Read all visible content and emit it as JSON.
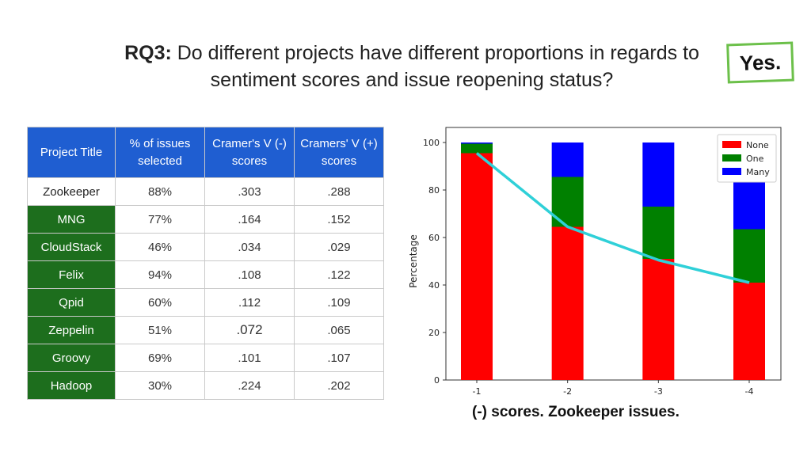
{
  "slide": {
    "title_bold": "RQ3:",
    "title_rest": " Do different projects have different proportions in regards to sentiment scores and issue reopening status?",
    "verdict": "Yes.",
    "caption": "(-) scores. Zookeeper issues."
  },
  "table": {
    "headers": [
      "Project Title",
      "% of issues selected",
      "Cramer's V (-) scores",
      "Cramers' V (+) scores"
    ],
    "rows": [
      [
        "Zookeeper",
        "88%",
        ".303",
        ".288"
      ],
      [
        "MNG",
        "77%",
        ".164",
        ".152"
      ],
      [
        "CloudStack",
        "46%",
        ".034",
        ".029"
      ],
      [
        "Felix",
        "94%",
        ".108",
        ".122"
      ],
      [
        "Qpid",
        "60%",
        ".112",
        ".109"
      ],
      [
        "Zeppelin",
        "51%",
        ".072",
        ".065"
      ],
      [
        "Groovy",
        "69%",
        ".101",
        ".107"
      ],
      [
        "Hadoop",
        "30%",
        ".224",
        ".202"
      ]
    ]
  },
  "colors": {
    "header_blue": "#1f5ed1",
    "project_green": "#1d6e1d",
    "verdict_border": "#6cc04a"
  },
  "chart_data": {
    "type": "bar",
    "stacked": true,
    "categories": [
      "-1",
      "-2",
      "-3",
      "-4"
    ],
    "series": [
      {
        "name": "None",
        "color": "#ff0000",
        "values": [
          95.5,
          64.5,
          51,
          41
        ]
      },
      {
        "name": "One",
        "color": "#008000",
        "values": [
          4,
          21,
          22,
          22.5
        ]
      },
      {
        "name": "Many",
        "color": "#0000ff",
        "values": [
          0.5,
          14.5,
          27,
          36.5
        ]
      }
    ],
    "trend_line": {
      "color": "#2fd0d8",
      "values": [
        95.5,
        64.5,
        50.5,
        41
      ]
    },
    "title": "",
    "xlabel": "",
    "ylabel": "Percentage",
    "ylim": [
      0,
      100
    ],
    "yticks": [
      0,
      20,
      40,
      60,
      80,
      100
    ],
    "grid": false,
    "legend": "top-right"
  }
}
